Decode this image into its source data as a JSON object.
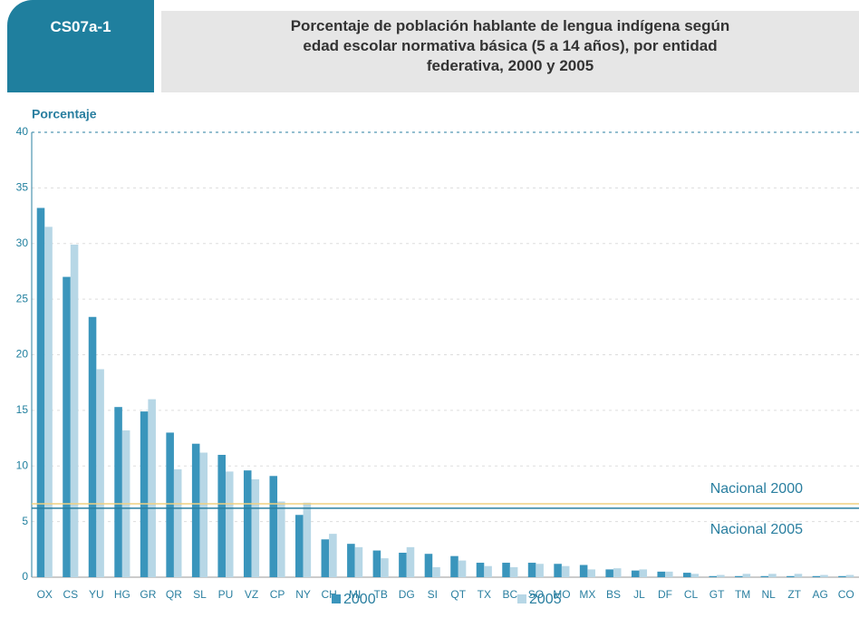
{
  "figure_id": "CS07a-1",
  "chart_data": {
    "type": "bar",
    "title": "Porcentaje de población hablante de lengua indígena según edad escolar normativa básica (5 a 14 años), por entidad federativa, 2000 y  2005",
    "y_label": "Porcentaje",
    "categories": [
      "OX",
      "CS",
      "YU",
      "HG",
      "GR",
      "QR",
      "SL",
      "PU",
      "VZ",
      "CP",
      "NY",
      "CH",
      "MI",
      "TB",
      "DG",
      "SI",
      "QT",
      "TX",
      "BC",
      "SO",
      "MO",
      "MX",
      "BS",
      "JL",
      "DF",
      "CL",
      "GT",
      "TM",
      "NL",
      "ZT",
      "AG",
      "CO"
    ],
    "series": [
      {
        "name": "2000",
        "color": "#3a95bc",
        "values": [
          33.2,
          27.0,
          23.4,
          15.3,
          14.9,
          13.0,
          12.0,
          11.0,
          9.6,
          9.1,
          5.6,
          3.4,
          3.0,
          2.4,
          2.2,
          2.1,
          1.9,
          1.3,
          1.3,
          1.3,
          1.2,
          1.1,
          0.7,
          0.6,
          0.5,
          0.4,
          0.1,
          0.1,
          0.1,
          0.1,
          0.1,
          0.1
        ]
      },
      {
        "name": "2005",
        "color": "#b7d7e6",
        "values": [
          31.5,
          29.9,
          18.7,
          13.2,
          16.0,
          9.7,
          11.2,
          9.5,
          8.8,
          6.8,
          6.7,
          3.9,
          2.7,
          1.7,
          2.7,
          0.9,
          1.5,
          1.0,
          0.9,
          1.2,
          1.0,
          0.7,
          0.8,
          0.7,
          0.5,
          0.3,
          0.2,
          0.3,
          0.3,
          0.3,
          0.2,
          0.2
        ]
      }
    ],
    "reference_lines": [
      {
        "label": "Nacional 2000",
        "value": 6.6,
        "color": "#f0d080"
      },
      {
        "label": "Nacional 2005",
        "value": 6.2,
        "color": "#2a7fa0"
      }
    ],
    "ylim": [
      0,
      40
    ],
    "yticks": [
      0,
      5,
      10,
      15,
      20,
      25,
      30,
      35,
      40
    ],
    "grid": true
  }
}
